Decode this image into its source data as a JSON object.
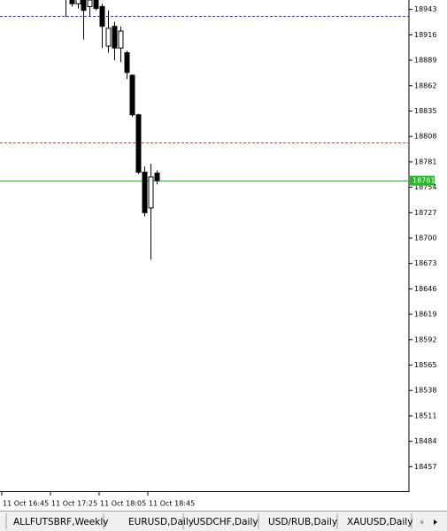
{
  "chart_data": {
    "type": "candlestick",
    "categories": [
      "11 Oct 16:45",
      null,
      null,
      null,
      null,
      null,
      null,
      null,
      "11 Oct 17:25",
      null,
      null,
      null,
      null,
      null,
      null,
      null,
      "11 Oct 18:05",
      null,
      null,
      null,
      null,
      null,
      null,
      null,
      "11 Oct 18:45",
      null
    ],
    "series": {
      "open": [
        null,
        null,
        null,
        null,
        null,
        null,
        null,
        null,
        null,
        null,
        18963,
        18958,
        18949,
        18958,
        18946,
        18953,
        18946,
        18904,
        18925,
        18902,
        18897,
        18873,
        18831,
        18770,
        18732,
        18769
      ],
      "high": [
        null,
        null,
        null,
        null,
        null,
        null,
        null,
        null,
        null,
        null,
        18967,
        18961,
        18963,
        18961,
        18956,
        18956,
        18949,
        18942,
        18930,
        18925,
        18899,
        18874,
        18832,
        18776,
        18779,
        18772
      ],
      "low": [
        null,
        null,
        null,
        null,
        null,
        null,
        null,
        null,
        null,
        null,
        18935,
        18946,
        18944,
        18911,
        18936,
        18942,
        18902,
        18897,
        18889,
        18887,
        18869,
        18829,
        18768,
        18723,
        18677,
        18757
      ],
      "close": [
        null,
        null,
        null,
        null,
        null,
        null,
        null,
        null,
        null,
        null,
        18956,
        18949,
        18958,
        18942,
        18953,
        18944,
        18925,
        18923,
        18902,
        18920,
        18876,
        18831,
        18770,
        18727,
        18765,
        18761
      ]
    },
    "bull_color": "#ffffff",
    "bear_color": "#000000",
    "ylim": [
      18431,
      18953
    ],
    "yticks": [
      18943,
      18916,
      18889,
      18862,
      18835,
      18808,
      18781,
      18754,
      18727,
      18700,
      18673,
      18646,
      18619,
      18592,
      18565,
      18538,
      18511,
      18484,
      18457
    ],
    "grid": false,
    "levels": [
      {
        "value": 18936,
        "color": "#3030ff",
        "dash": true
      },
      {
        "value": 18802,
        "color": "#ff3030",
        "dash": true
      },
      {
        "value": 18761,
        "color": "#22bb22",
        "dash": false
      }
    ]
  },
  "tabs": [
    "ALLFUTSBRF,Weekly",
    "EURUSD,Daily",
    "USDCHF,Daily",
    "USD/RUB,Daily",
    "XAUUSD,Daily"
  ]
}
